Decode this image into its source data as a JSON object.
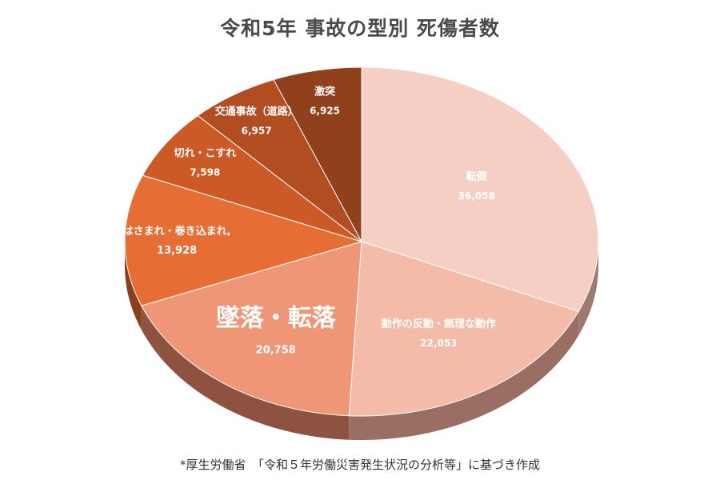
{
  "chart_data": {
    "type": "pie",
    "title": "令和5年 事故の型別 死傷者数",
    "slices": [
      {
        "label": "転倒",
        "value": 36058,
        "value_text": "36,058",
        "color": "#f5cfc4",
        "side": "#9c7a70"
      },
      {
        "label": "動作の反動・無理な動作",
        "value": 22053,
        "value_text": "22,053",
        "color": "#f4bba9",
        "side": "#9a6e62"
      },
      {
        "label": "墜落・転落",
        "value": 20758,
        "value_text": "20,758",
        "color": "#ef9677",
        "side": "#8e5340"
      },
      {
        "label": "はさまれ・巻き込まれ,",
        "value": 13928,
        "value_text": "13,928",
        "color": "#e66e35",
        "side": "#8a3f1c"
      },
      {
        "label": "切れ・こすれ",
        "value": 7598,
        "value_text": "7,598",
        "color": "#cc5a26",
        "side": "#7a3617"
      },
      {
        "label": "交通事故（道路）",
        "value": 6957,
        "value_text": "6,957",
        "color": "#b14d20",
        "side": "#6a2e13"
      },
      {
        "label": "激突",
        "value": 6925,
        "value_text": "6,925",
        "color": "#91401c",
        "side": "#582710"
      }
    ],
    "legend": "none",
    "grid": false
  },
  "source_note": "*厚生労働省　「令和５年労働災害発生状況の分析等」に基づき作成"
}
